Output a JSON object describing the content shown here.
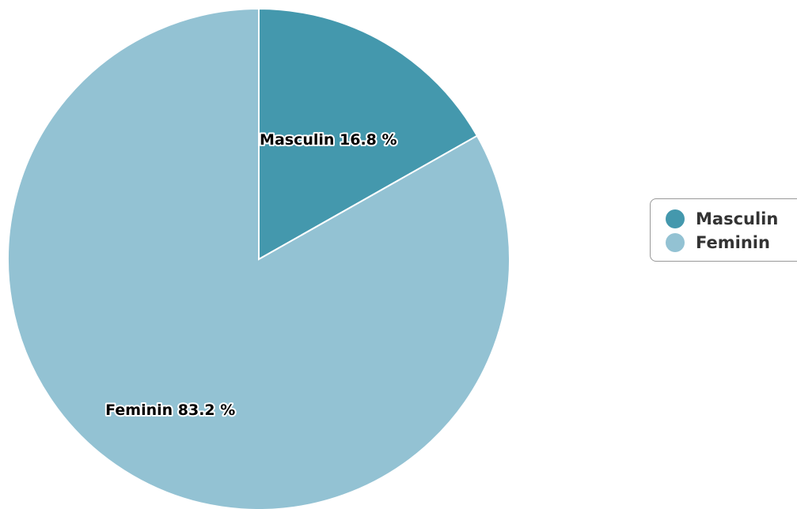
{
  "chart_data": {
    "type": "pie",
    "categories": [
      "Masculin",
      "Feminin"
    ],
    "values": [
      16.8,
      83.2
    ],
    "unit": "%",
    "colors": [
      "#4498ad",
      "#93c2d3"
    ],
    "labels": [
      "Masculin 16.8 %",
      "Feminin 83.2 %"
    ],
    "start_angle_deg": 0,
    "direction": "clockwise",
    "legend": {
      "position": "right",
      "entries": [
        "Masculin",
        "Feminin"
      ]
    }
  }
}
